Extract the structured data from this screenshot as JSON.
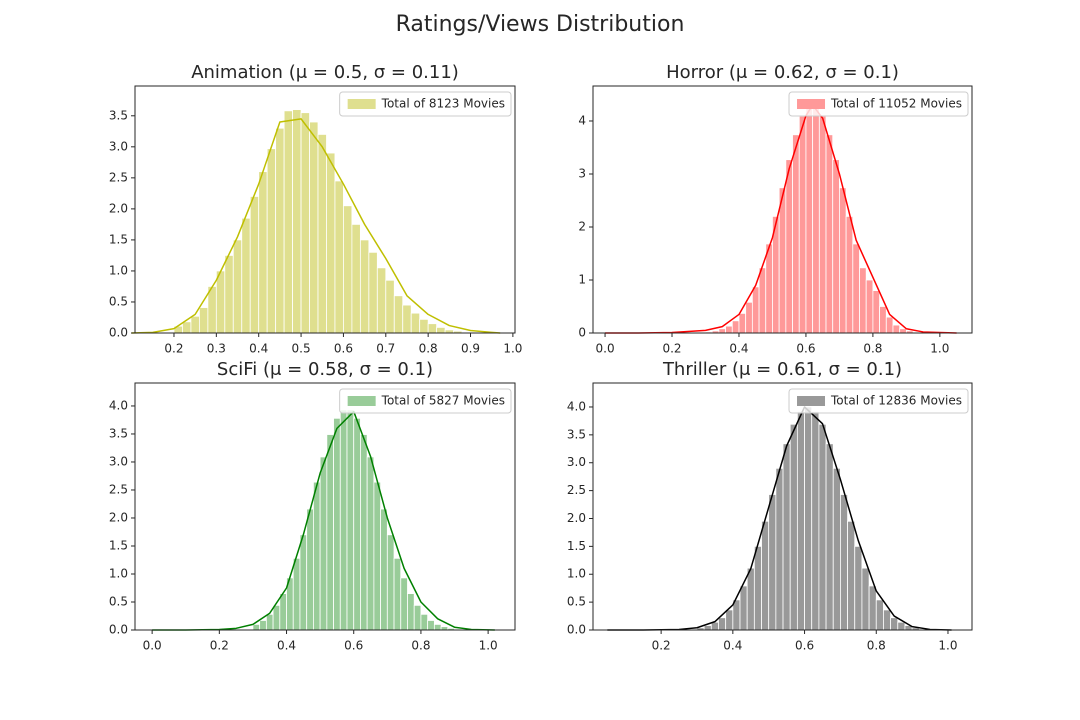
{
  "title": "Ratings/Views Distribution",
  "chart_data": [
    {
      "type": "histogram",
      "title": "Animation (μ = 0.5, σ = 0.11)",
      "legend": "upper right",
      "series": [
        {
          "name": "Total of 8123 Movies",
          "color": "#dfdf8f",
          "line_color": "#bfbf00",
          "bins": [
            0.2,
            0.22,
            0.24,
            0.26,
            0.28,
            0.3,
            0.32,
            0.34,
            0.36,
            0.38,
            0.4,
            0.42,
            0.44,
            0.46,
            0.48,
            0.5,
            0.52,
            0.54,
            0.56,
            0.58,
            0.6,
            0.62,
            0.64,
            0.66,
            0.68,
            0.7,
            0.72,
            0.74,
            0.76,
            0.78,
            0.8,
            0.82,
            0.84,
            0.86,
            0.88,
            0.9
          ],
          "values": [
            0.11,
            0.18,
            0.27,
            0.41,
            0.75,
            1.0,
            1.25,
            1.5,
            1.85,
            2.2,
            2.6,
            2.97,
            3.3,
            3.58,
            3.6,
            3.55,
            3.4,
            3.2,
            2.9,
            2.45,
            2.05,
            1.75,
            1.5,
            1.3,
            1.05,
            0.85,
            0.6,
            0.45,
            0.32,
            0.22,
            0.15,
            0.09,
            0.05,
            0.03,
            0.01
          ],
          "kde_x": [
            0.1,
            0.15,
            0.2,
            0.25,
            0.3,
            0.35,
            0.4,
            0.45,
            0.5,
            0.55,
            0.6,
            0.65,
            0.7,
            0.75,
            0.8,
            0.85,
            0.9,
            0.95,
            0.97
          ],
          "kde_values": [
            0,
            0.01,
            0.07,
            0.3,
            0.85,
            1.55,
            2.4,
            3.4,
            3.45,
            3.0,
            2.4,
            1.75,
            1.2,
            0.6,
            0.3,
            0.12,
            0.04,
            0.01,
            0
          ]
        }
      ],
      "xlim": [
        0.108,
        1.005
      ],
      "ylim": [
        0,
        3.98
      ],
      "xticks": [
        0.2,
        0.3,
        0.4,
        0.5,
        0.6,
        0.7,
        0.8,
        0.9,
        {
          "value": 1,
          "label": "1.0"
        }
      ],
      "yticks": [
        {
          "value": 0,
          "label": "0.0"
        },
        0.5,
        {
          "value": 1,
          "label": "1.0"
        },
        1.5,
        {
          "value": 2,
          "label": "2.0"
        },
        2.5,
        {
          "value": 3,
          "label": "3.0"
        },
        3.5
      ]
    },
    {
      "type": "histogram",
      "title": "Horror (μ = 0.62, σ = 0.1)",
      "legend": "upper right",
      "series": [
        {
          "name": "Total of 11052 Movies",
          "color": "#ff9999",
          "line_color": "#ff0000",
          "bins": [
            0.3,
            0.32,
            0.34,
            0.36,
            0.38,
            0.4,
            0.42,
            0.44,
            0.46,
            0.48,
            0.5,
            0.52,
            0.54,
            0.56,
            0.58,
            0.6,
            0.62,
            0.64,
            0.66,
            0.68,
            0.7,
            0.72,
            0.74,
            0.76,
            0.78,
            0.8,
            0.82,
            0.84,
            0.86,
            0.88,
            0.9,
            0.92
          ],
          "values": [
            0.02,
            0.04,
            0.08,
            0.13,
            0.23,
            0.37,
            0.58,
            0.87,
            1.23,
            1.68,
            2.2,
            2.74,
            3.27,
            3.74,
            4.09,
            4.28,
            4.28,
            4.09,
            3.74,
            3.27,
            2.74,
            2.2,
            1.68,
            1.23,
            1.0,
            0.8,
            0.5,
            0.3,
            0.15,
            0.08,
            0.04
          ],
          "kde_x": [
            0,
            0.1,
            0.2,
            0.3,
            0.35,
            0.4,
            0.45,
            0.5,
            0.55,
            0.6,
            0.62,
            0.65,
            0.7,
            0.75,
            0.8,
            0.85,
            0.9,
            0.95,
            1.05
          ],
          "kde_values": [
            0,
            0,
            0.01,
            0.05,
            0.12,
            0.35,
            0.9,
            1.8,
            3.1,
            4.1,
            4.3,
            4.05,
            3.0,
            1.75,
            1.05,
            0.35,
            0.08,
            0.02,
            0
          ]
        }
      ],
      "xlim": [
        -0.036,
        1.096
      ],
      "ylim": [
        0,
        4.66
      ],
      "xticks": [
        {
          "value": 0,
          "label": "0.0"
        },
        0.2,
        0.4,
        0.6,
        0.8,
        {
          "value": 1,
          "label": "1.0"
        }
      ],
      "yticks": [
        0,
        1,
        2,
        3,
        4
      ]
    },
    {
      "type": "histogram",
      "title": "SciFi (μ = 0.58, σ = 0.1)",
      "legend": "upper right",
      "series": [
        {
          "name": "Total of 5827 Movies",
          "color": "#99cc99",
          "line_color": "#008000",
          "bins": [
            0.3,
            0.32,
            0.34,
            0.36,
            0.38,
            0.4,
            0.42,
            0.44,
            0.46,
            0.48,
            0.5,
            0.52,
            0.54,
            0.56,
            0.58,
            0.6,
            0.62,
            0.64,
            0.66,
            0.68,
            0.7,
            0.72,
            0.74,
            0.76,
            0.78,
            0.8,
            0.82,
            0.84,
            0.86,
            0.88,
            0.9
          ],
          "values": [
            0.1,
            0.17,
            0.28,
            0.44,
            0.65,
            0.93,
            1.28,
            1.7,
            2.16,
            2.64,
            3.09,
            3.49,
            3.78,
            3.93,
            3.93,
            3.78,
            3.49,
            3.09,
            2.64,
            2.16,
            1.7,
            1.28,
            0.93,
            0.65,
            0.44,
            0.28,
            0.17,
            0.1,
            0.06,
            0.03
          ],
          "kde_x": [
            0,
            0.1,
            0.2,
            0.25,
            0.3,
            0.35,
            0.4,
            0.45,
            0.5,
            0.55,
            0.6,
            0.65,
            0.7,
            0.75,
            0.8,
            0.85,
            0.9,
            0.95,
            1.02
          ],
          "kde_values": [
            0,
            0,
            0.01,
            0.03,
            0.1,
            0.3,
            0.75,
            1.7,
            2.8,
            3.6,
            3.9,
            3.1,
            2.0,
            1.1,
            0.5,
            0.2,
            0.05,
            0.01,
            0
          ]
        }
      ],
      "xlim": [
        -0.051,
        1.08
      ],
      "ylim": [
        0,
        4.41
      ],
      "xticks": [
        {
          "value": 0,
          "label": "0.0"
        },
        0.2,
        0.4,
        0.6,
        0.8,
        {
          "value": 1,
          "label": "1.0"
        }
      ],
      "yticks": [
        {
          "value": 0,
          "label": "0.0"
        },
        0.5,
        {
          "value": 1,
          "label": "1.0"
        },
        1.5,
        {
          "value": 2,
          "label": "2.0"
        },
        2.5,
        {
          "value": 3,
          "label": "3.0"
        },
        3.5,
        {
          "value": 4,
          "label": "4.0"
        }
      ]
    },
    {
      "type": "histogram",
      "title": "Thriller (μ = 0.61, σ = 0.1)",
      "legend": "upper right",
      "series": [
        {
          "name": "Total of 12836 Movies",
          "color": "#999999",
          "line_color": "#000000",
          "bins": [
            0.3,
            0.32,
            0.34,
            0.36,
            0.38,
            0.4,
            0.42,
            0.44,
            0.46,
            0.48,
            0.5,
            0.52,
            0.54,
            0.56,
            0.58,
            0.6,
            0.62,
            0.64,
            0.66,
            0.68,
            0.7,
            0.72,
            0.74,
            0.76,
            0.78,
            0.8,
            0.82,
            0.84,
            0.86,
            0.88,
            0.9,
            0.92
          ],
          "values": [
            0.04,
            0.08,
            0.14,
            0.22,
            0.36,
            0.54,
            0.79,
            1.11,
            1.5,
            1.95,
            2.43,
            2.9,
            3.34,
            3.69,
            3.92,
            4.0,
            3.92,
            3.69,
            3.34,
            2.9,
            2.43,
            1.95,
            1.5,
            1.11,
            0.79,
            0.54,
            0.36,
            0.22,
            0.14,
            0.08,
            0.04
          ],
          "kde_x": [
            0.05,
            0.15,
            0.25,
            0.3,
            0.35,
            0.4,
            0.45,
            0.5,
            0.55,
            0.6,
            0.65,
            0.7,
            0.75,
            0.8,
            0.85,
            0.9,
            0.95,
            1.01
          ],
          "kde_values": [
            0,
            0,
            0.01,
            0.04,
            0.15,
            0.45,
            1.1,
            2.2,
            3.3,
            4.0,
            3.7,
            2.7,
            1.6,
            0.7,
            0.25,
            0.06,
            0.01,
            0
          ]
        }
      ],
      "xlim": [
        0.01,
        1.067
      ],
      "ylim": [
        0,
        4.43
      ],
      "xticks": [
        0.2,
        0.4,
        0.6,
        0.8,
        {
          "value": 1,
          "label": "1.0"
        }
      ],
      "yticks": [
        {
          "value": 0,
          "label": "0.0"
        },
        0.5,
        {
          "value": 1,
          "label": "1.0"
        },
        1.5,
        {
          "value": 2,
          "label": "2.0"
        },
        2.5,
        {
          "value": 3,
          "label": "3.0"
        },
        3.5,
        {
          "value": 4,
          "label": "4.0"
        }
      ]
    }
  ]
}
